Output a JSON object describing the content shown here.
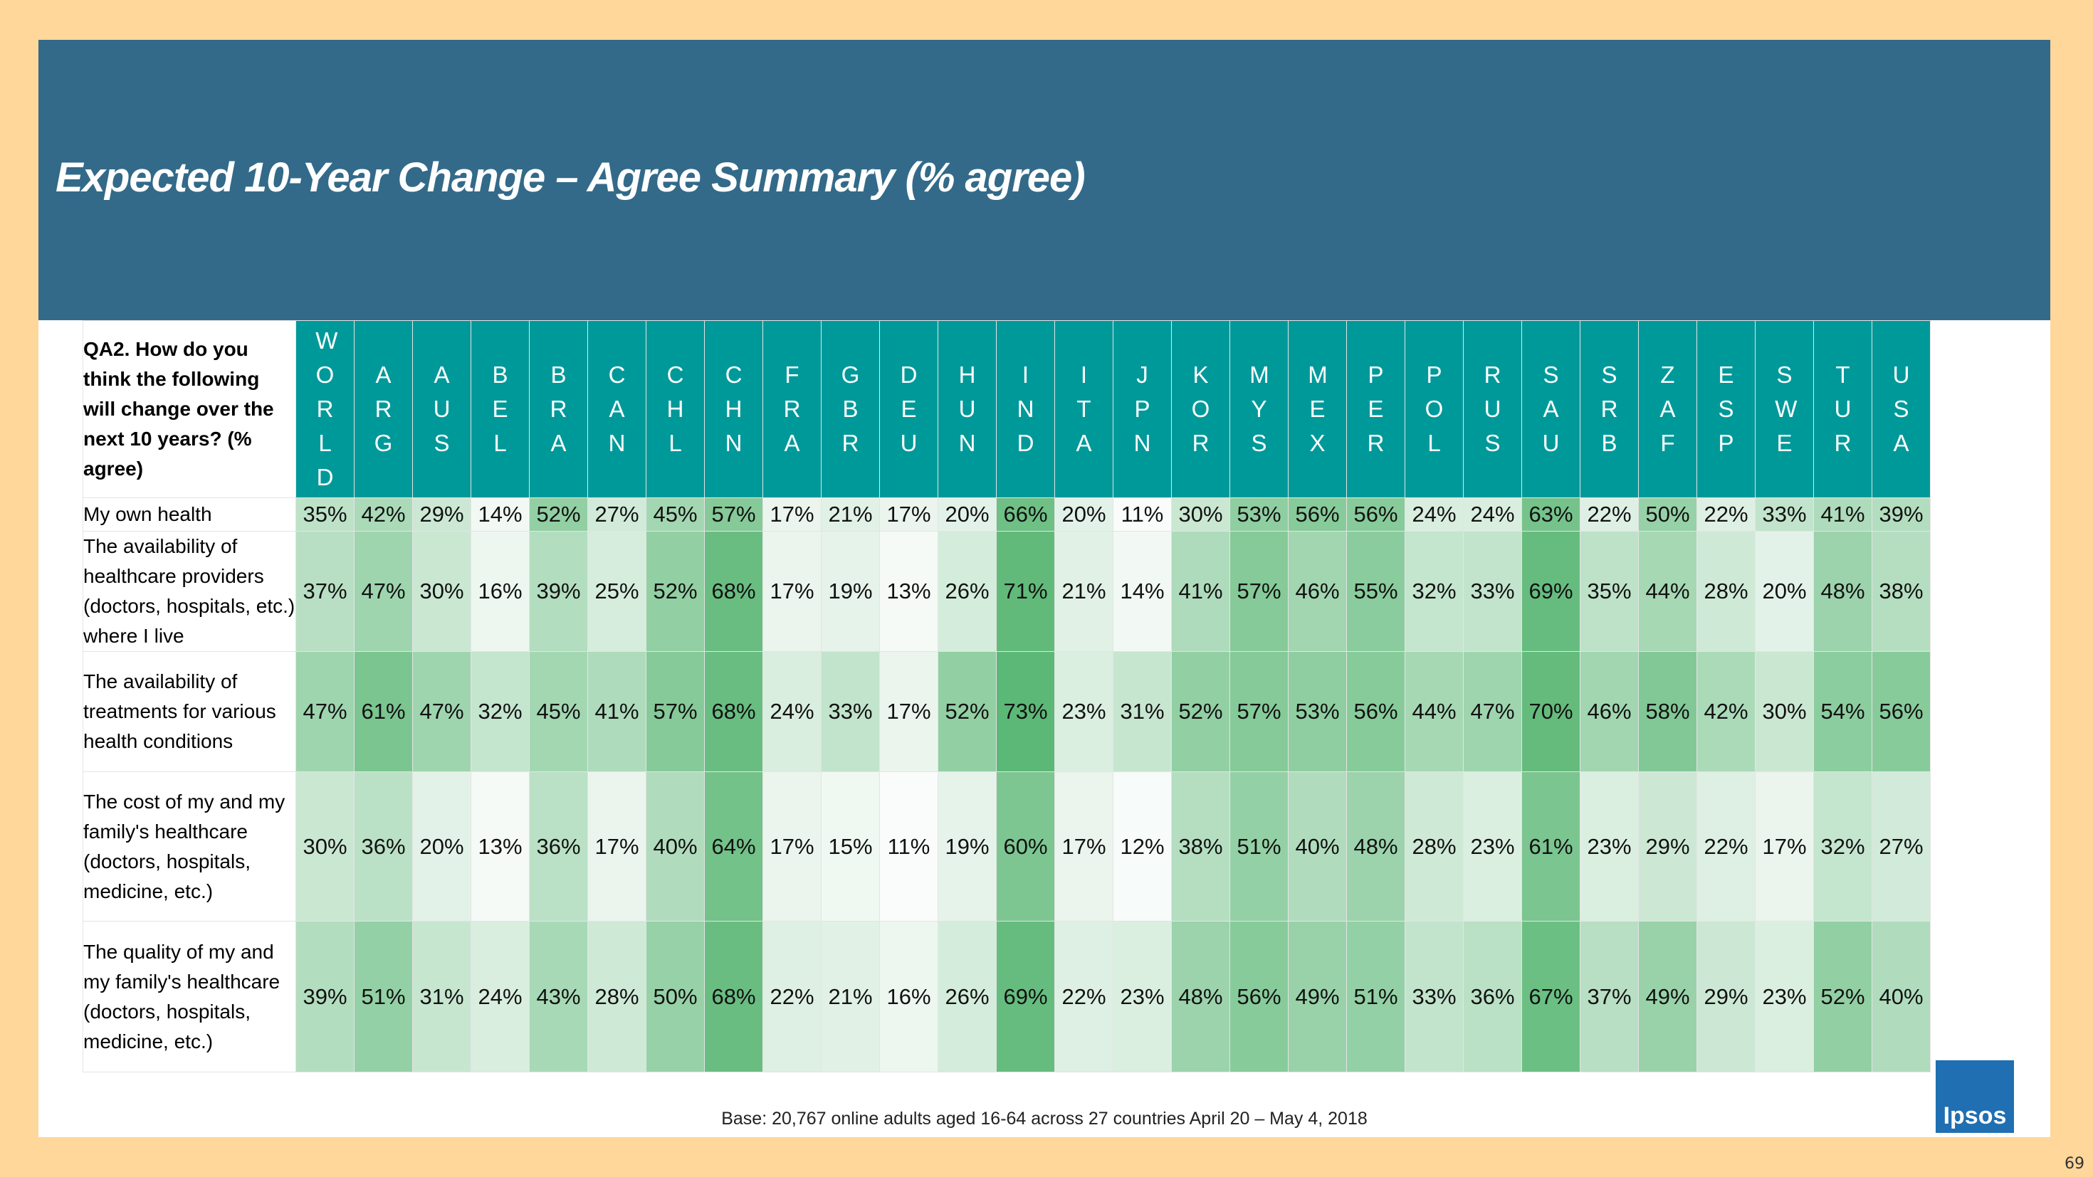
{
  "title": "Expected 10-Year Change – Agree Summary (% agree)",
  "table": {
    "question": "QA2. How do you think the following will change over the next 10 years? (% agree)",
    "columns": [
      "WORLD",
      "ARG",
      "AUS",
      "BEL",
      "BRA",
      "CAN",
      "CHL",
      "CHN",
      "FRA",
      "GBR",
      "DEU",
      "HUN",
      "IND",
      "ITA",
      "JPN",
      "KOR",
      "MYS",
      "MEX",
      "PER",
      "POL",
      "RUS",
      "SAU",
      "SRB",
      "ZAF",
      "ESP",
      "SWE",
      "TUR",
      "USA"
    ],
    "rows": [
      {
        "label": "My own health",
        "cells": [
          "35%",
          "42%",
          "29%",
          "14%",
          "52%",
          "27%",
          "45%",
          "57%",
          "17%",
          "21%",
          "17%",
          "20%",
          "66%",
          "20%",
          "11%",
          "30%",
          "53%",
          "56%",
          "56%",
          "24%",
          "24%",
          "63%",
          "22%",
          "50%",
          "22%",
          "33%",
          "41%",
          "39%"
        ]
      },
      {
        "label": "The availability of healthcare providers (doctors, hospitals, etc.) where I live",
        "cells": [
          "37%",
          "47%",
          "30%",
          "16%",
          "39%",
          "25%",
          "52%",
          "68%",
          "17%",
          "19%",
          "13%",
          "26%",
          "71%",
          "21%",
          "14%",
          "41%",
          "57%",
          "46%",
          "55%",
          "32%",
          "33%",
          "69%",
          "35%",
          "44%",
          "28%",
          "20%",
          "48%",
          "38%"
        ]
      },
      {
        "label": "The availability of treatments for various health conditions",
        "cells": [
          "47%",
          "61%",
          "47%",
          "32%",
          "45%",
          "41%",
          "57%",
          "68%",
          "24%",
          "33%",
          "17%",
          "52%",
          "73%",
          "23%",
          "31%",
          "52%",
          "57%",
          "53%",
          "56%",
          "44%",
          "47%",
          "70%",
          "46%",
          "58%",
          "42%",
          "30%",
          "54%",
          "56%"
        ]
      },
      {
        "label": "The cost of my and my family's healthcare (doctors, hospitals, medicine, etc.)",
        "cells": [
          "30%",
          "36%",
          "20%",
          "13%",
          "36%",
          "17%",
          "40%",
          "64%",
          "17%",
          "15%",
          "11%",
          "19%",
          "60%",
          "17%",
          "12%",
          "38%",
          "51%",
          "40%",
          "48%",
          "28%",
          "23%",
          "61%",
          "23%",
          "29%",
          "22%",
          "17%",
          "32%",
          "27%"
        ]
      },
      {
        "label": "The quality of my and my family's healthcare (doctors, hospitals, medicine, etc.)",
        "cells": [
          "39%",
          "51%",
          "31%",
          "24%",
          "43%",
          "28%",
          "50%",
          "68%",
          "22%",
          "21%",
          "16%",
          "26%",
          "69%",
          "22%",
          "23%",
          "48%",
          "56%",
          "49%",
          "51%",
          "33%",
          "36%",
          "67%",
          "37%",
          "49%",
          "29%",
          "23%",
          "52%",
          "40%"
        ]
      }
    ]
  },
  "footer": "Base: 20,767 online adults aged 16-64 across 27 countries  April 20 – May 4, 2018",
  "logo": "Ipsos",
  "page_number": "69"
}
